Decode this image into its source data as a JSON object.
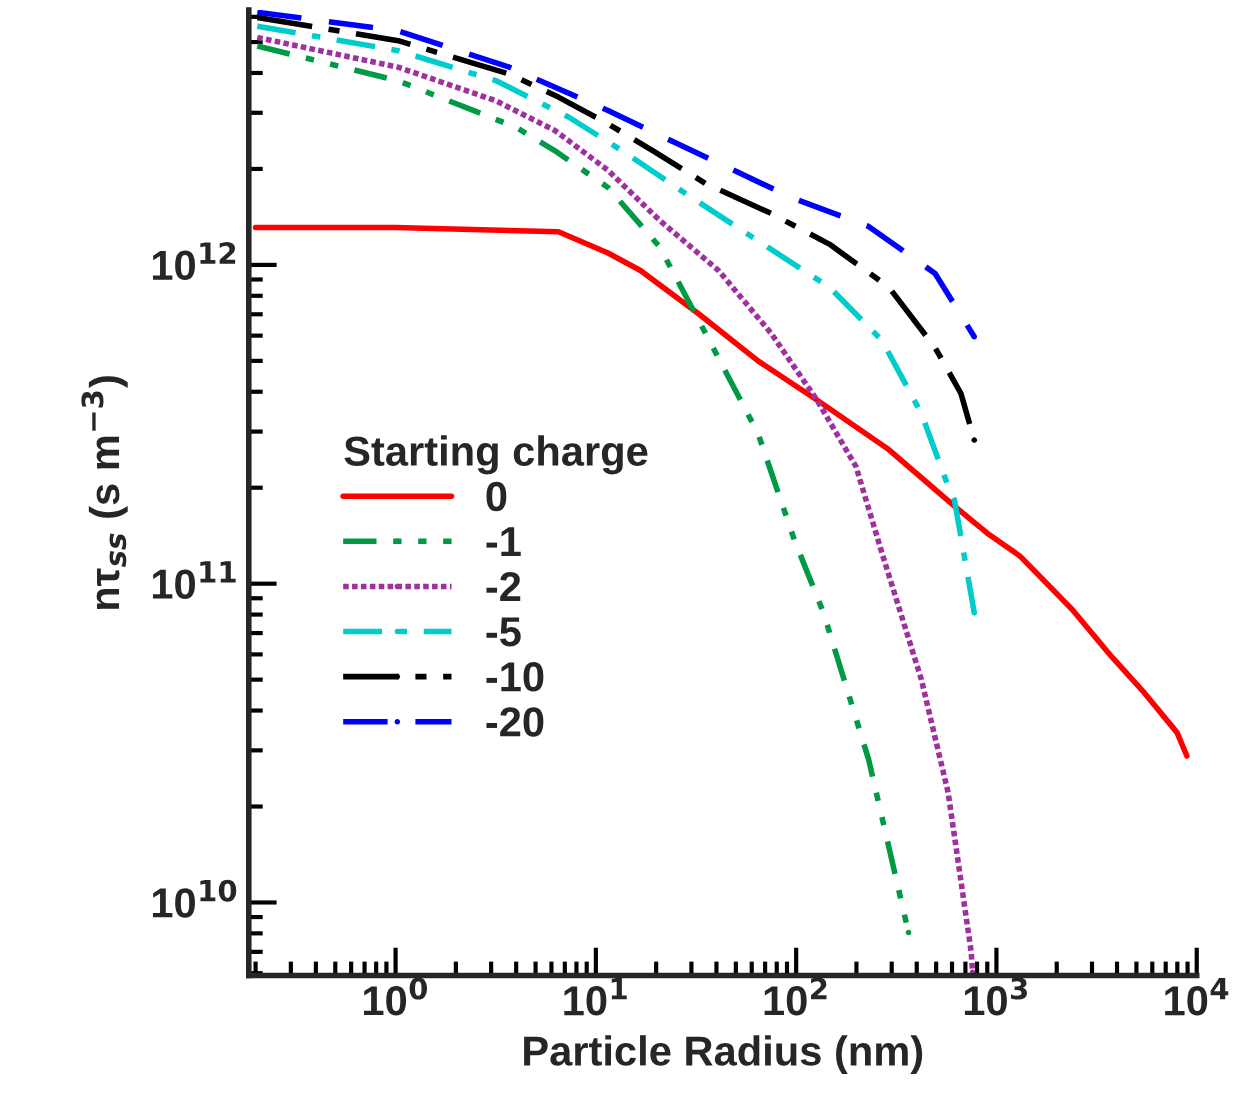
{
  "chart_data": {
    "type": "line",
    "xlabel": "Particle Radius (nm)",
    "ylabel": "nτ$_{ss}$ (s m$^{−3}$)",
    "legend_title": "Starting charge",
    "legend": "bottom left",
    "log": "xy",
    "grid": false,
    "xlim": [
      0.185,
      10000
    ],
    "ylim": [
      5900000000.0,
      6300000000000.0
    ],
    "xticks": [
      {
        "value": 1,
        "label": "10$^{0}$"
      },
      {
        "value": 10,
        "label": "10$^{1}$"
      },
      {
        "value": 100,
        "label": "10$^{2}$"
      },
      {
        "value": 1000,
        "label": "10$^{3}$"
      },
      {
        "value": 10000,
        "label": "10$^{4}$"
      }
    ],
    "yticks": [
      {
        "value": 10000000000.0,
        "label": "10$^{10}$"
      },
      {
        "value": 100000000000.0,
        "label": "10$^{11}$"
      },
      {
        "value": 1000000000000.0,
        "label": "10$^{12}$"
      }
    ],
    "series": [
      {
        "name": "0",
        "color": "#ff0000",
        "line_style": "solid",
        "x": [
          0.2,
          1,
          6.5,
          11.5,
          16.7,
          32.8,
          64.5,
          127,
          291,
          617,
          900,
          1312,
          2390,
          3760,
          5470,
          7980,
          8930
        ],
        "values": [
          1310000000000.0,
          1310000000000.0,
          1270000000000.0,
          1090000000000.0,
          960000000000.0,
          700000000000.0,
          500000000000.0,
          377000000000.0,
          263000000000.0,
          175000000000.0,
          144000000000.0,
          122000000000.0,
          83000000000.0,
          59000000000.0,
          45500000000.0,
          34100000000.0,
          28800000000.0
        ]
      },
      {
        "name": "-1",
        "color": "#009944",
        "line_style": "dashdotdot",
        "x": [
          0.204,
          1.03,
          4.0,
          6.25,
          11.5,
          20.8,
          35.3,
          64.5,
          98,
          137,
          230,
          364
        ],
        "values": [
          4860000000000.0,
          3780000000000.0,
          2700000000000.0,
          2280000000000.0,
          1750000000000.0,
          1140000000000.0,
          610000000000.0,
          296000000000.0,
          137000000000.0,
          81000000000.0,
          28100000000.0,
          8050000000.0
        ]
      },
      {
        "name": "-2",
        "color": "#a0309f",
        "line_style": "dotted",
        "x": [
          0.204,
          1.03,
          3.18,
          6.25,
          11.5,
          20.8,
          41,
          75,
          127,
          199,
          268,
          422,
          574,
          748,
          760
        ],
        "values": [
          5170000000000.0,
          4170000000000.0,
          3270000000000.0,
          2640000000000.0,
          1980000000000.0,
          1380000000000.0,
          960000000000.0,
          610000000000.0,
          377000000000.0,
          233000000000.0,
          125000000000.0,
          50000000000.0,
          22100000000.0,
          7000000000.0,
          6040000000.0
        ]
      },
      {
        "name": "-5",
        "color": "#00cccc",
        "line_style": "dashdot",
        "x": [
          0.204,
          1.03,
          3.18,
          7.3,
          14.3,
          28.2,
          64.5,
          147,
          268,
          422,
          574,
          617,
          775
        ],
        "values": [
          5610000000000.0,
          4700000000000.0,
          3780000000000.0,
          2910000000000.0,
          2230000000000.0,
          1670000000000.0,
          1190000000000.0,
          850000000000.0,
          580000000000.0,
          342000000000.0,
          202000000000.0,
          183000000000.0,
          81000000000.0
        ]
      },
      {
        "name": "-10",
        "color": "#000000",
        "line_style": "longdashdot",
        "x": [
          0.204,
          1.03,
          3.7,
          6.5,
          11.5,
          19.3,
          35.3,
          75,
          147,
          291,
          494,
          665,
          775
        ],
        "values": [
          5970000000000.0,
          5050000000000.0,
          3970000000000.0,
          3360000000000.0,
          2770000000000.0,
          2280000000000.0,
          1800000000000.0,
          1450000000000.0,
          1160000000000.0,
          850000000000.0,
          550000000000.0,
          395000000000.0,
          282000000000.0
        ]
      },
      {
        "name": "-20",
        "color": "#0000ff",
        "line_style": "dashed",
        "x": [
          0.204,
          1.03,
          3.7,
          11.5,
          35.3,
          94,
          230,
          494,
          775
        ],
        "values": [
          6200000000000.0,
          5420000000000.0,
          4170000000000.0,
          3050000000000.0,
          2180000000000.0,
          1630000000000.0,
          1320000000000.0,
          940000000000.0,
          595000000000.0
        ]
      }
    ]
  }
}
